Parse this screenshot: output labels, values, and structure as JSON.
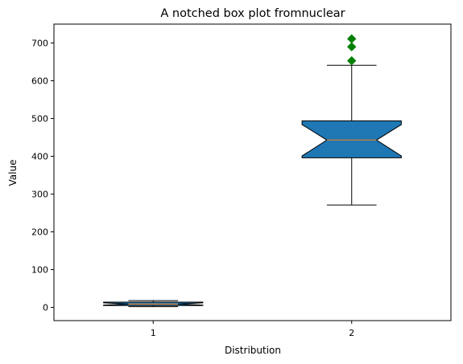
{
  "chart_data": {
    "type": "boxplot",
    "title": "A notched box plot fromnuclear",
    "xlabel": "Distribution",
    "ylabel": "Value",
    "categories": [
      "1",
      "2"
    ],
    "ylim": [
      -35,
      750
    ],
    "yticks": [
      0,
      100,
      200,
      300,
      400,
      500,
      600,
      700
    ],
    "notched": true,
    "box_color": "#1f77b4",
    "median_color": "#ff7f0e",
    "flier_color": "#008000",
    "flier_marker": "diamond",
    "boxes": [
      {
        "label": "1",
        "whisker_low": 2,
        "q1": 5,
        "median": 9,
        "q3": 14,
        "whisker_high": 18,
        "notch_low": 6,
        "notch_high": 12,
        "fliers": []
      },
      {
        "label": "2",
        "whisker_low": 271,
        "q1": 396,
        "median": 443,
        "q3": 494,
        "whisker_high": 641,
        "notch_low": 401,
        "notch_high": 484,
        "fliers": [
          653,
          690,
          711
        ]
      }
    ]
  }
}
